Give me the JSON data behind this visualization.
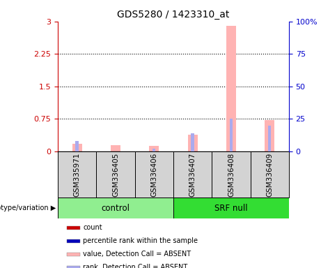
{
  "title": "GDS5280 / 1423310_at",
  "samples": [
    "GSM335971",
    "GSM336405",
    "GSM336406",
    "GSM336407",
    "GSM336408",
    "GSM336409"
  ],
  "groups": [
    {
      "name": "control",
      "color": "#90ee90",
      "start": 0,
      "end": 3
    },
    {
      "name": "SRF null",
      "color": "#33dd33",
      "start": 3,
      "end": 6
    }
  ],
  "pink_bar_values": [
    0.18,
    0.15,
    0.12,
    0.38,
    2.9,
    0.72
  ],
  "blue_bar_values": [
    8.0,
    0.0,
    2.0,
    14.0,
    25.0,
    20.0
  ],
  "ylim_left": [
    0,
    3
  ],
  "ylim_right": [
    0,
    100
  ],
  "yticks_left": [
    0,
    0.75,
    1.5,
    2.25,
    3
  ],
  "ytick_labels_left": [
    "0",
    "0.75",
    "1.5",
    "2.25",
    "3"
  ],
  "yticks_right": [
    0,
    25,
    50,
    75,
    100
  ],
  "ytick_labels_right": [
    "0",
    "25",
    "50",
    "75",
    "100%"
  ],
  "left_axis_color": "#cc0000",
  "right_axis_color": "#0000cc",
  "pink_bar_width": 0.25,
  "blue_bar_width": 0.08,
  "pink_color": "#ffb3b3",
  "blue_color": "#aaaaee",
  "bg_color": "#d3d3d3",
  "legend_items": [
    {
      "color": "#cc0000",
      "label": "count"
    },
    {
      "color": "#0000bb",
      "label": "percentile rank within the sample"
    },
    {
      "color": "#ffb3b3",
      "label": "value, Detection Call = ABSENT"
    },
    {
      "color": "#aaaaee",
      "label": "rank, Detection Call = ABSENT"
    }
  ]
}
